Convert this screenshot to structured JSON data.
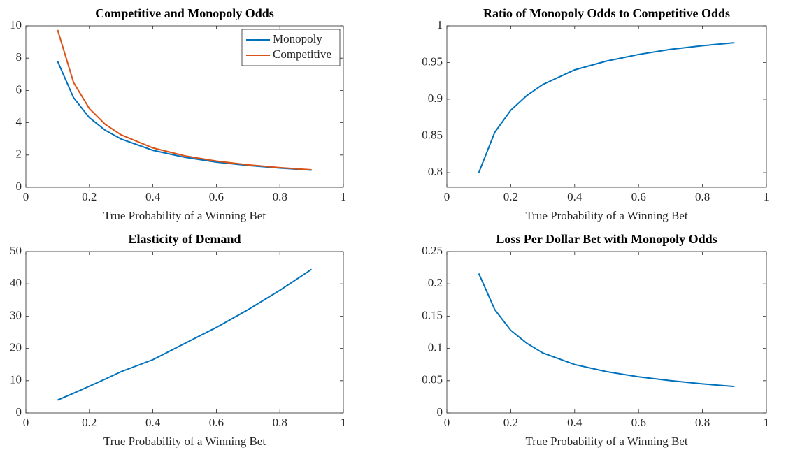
{
  "chart_data": [
    {
      "type": "line",
      "title": "Competitive and Monopoly Odds",
      "x_label": "True Probability of a Winning Bet",
      "x": [
        0.1,
        0.15,
        0.2,
        0.25,
        0.3,
        0.4,
        0.5,
        0.6,
        0.7,
        0.8,
        0.9
      ],
      "series": [
        {
          "name": "Monopoly",
          "color": "#0072bd",
          "values": [
            7.8,
            5.56,
            4.31,
            3.53,
            2.99,
            2.29,
            1.86,
            1.56,
            1.35,
            1.19,
            1.06
          ]
        },
        {
          "name": "Competitive",
          "color": "#d95319",
          "values": [
            9.75,
            6.5,
            4.875,
            3.9,
            3.25,
            2.44,
            1.95,
            1.625,
            1.393,
            1.219,
            1.083
          ]
        }
      ],
      "xlim": [
        0,
        1
      ],
      "ylim": [
        0,
        10
      ],
      "xticks": [
        0,
        0.2,
        0.4,
        0.6,
        0.8,
        1
      ],
      "yticks": [
        0,
        2,
        4,
        6,
        8,
        10
      ],
      "legend": "northeast"
    },
    {
      "type": "line",
      "title": "Ratio of Monopoly Odds to Competitive Odds",
      "x_label": "True Probability of a Winning Bet",
      "x": [
        0.1,
        0.15,
        0.2,
        0.25,
        0.3,
        0.4,
        0.5,
        0.6,
        0.7,
        0.8,
        0.9
      ],
      "values": [
        0.8,
        0.855,
        0.885,
        0.905,
        0.92,
        0.94,
        0.952,
        0.961,
        0.968,
        0.973,
        0.977
      ],
      "color": "#0072bd",
      "xlim": [
        0,
        1
      ],
      "ylim": [
        0.78,
        1
      ],
      "xticks": [
        0,
        0.2,
        0.4,
        0.6,
        0.8,
        1
      ],
      "yticks": [
        0.8,
        0.85,
        0.9,
        0.95,
        1
      ]
    },
    {
      "type": "line",
      "title": "Elasticity of Demand",
      "x_label": "True Probability of a Winning Bet",
      "x": [
        0.1,
        0.15,
        0.2,
        0.25,
        0.3,
        0.4,
        0.5,
        0.6,
        0.7,
        0.8,
        0.9
      ],
      "values": [
        4,
        6.1,
        8.3,
        10.5,
        12.8,
        16.5,
        21.5,
        26.5,
        32,
        38,
        44.5
      ],
      "color": "#0072bd",
      "xlim": [
        0,
        1
      ],
      "ylim": [
        0,
        50
      ],
      "xticks": [
        0,
        0.2,
        0.4,
        0.6,
        0.8,
        1
      ],
      "yticks": [
        0,
        10,
        20,
        30,
        40,
        50
      ]
    },
    {
      "type": "line",
      "title": "Loss Per Dollar Bet with Monopoly Odds",
      "x_label": "True Probability of a Winning Bet",
      "x": [
        0.1,
        0.15,
        0.2,
        0.25,
        0.3,
        0.4,
        0.5,
        0.6,
        0.7,
        0.8,
        0.9
      ],
      "values": [
        0.216,
        0.16,
        0.128,
        0.108,
        0.093,
        0.075,
        0.064,
        0.056,
        0.05,
        0.045,
        0.041
      ],
      "color": "#0072bd",
      "xlim": [
        0,
        1
      ],
      "ylim": [
        0,
        0.25
      ],
      "xticks": [
        0,
        0.2,
        0.4,
        0.6,
        0.8,
        1
      ],
      "yticks": [
        0,
        0.05,
        0.1,
        0.15,
        0.2,
        0.25
      ]
    }
  ]
}
